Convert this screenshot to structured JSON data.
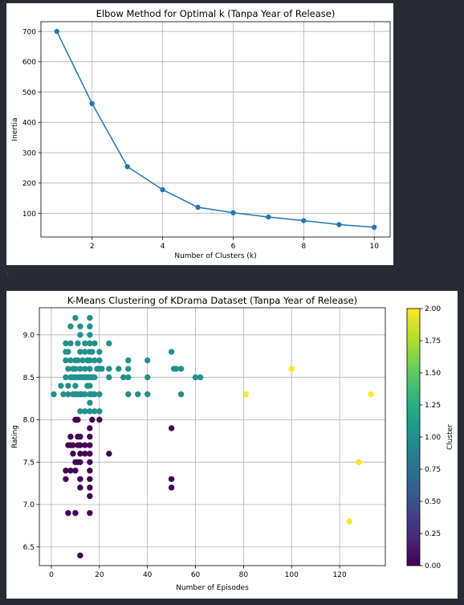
{
  "chart_data": [
    {
      "type": "line",
      "title": "Elbow Method for Optimal k (Tanpa Year of Release)",
      "xlabel": "Number of Clusters (k)",
      "ylabel": "Inertia",
      "x": [
        1,
        2,
        3,
        4,
        5,
        6,
        7,
        8,
        9,
        10
      ],
      "y": [
        700,
        462,
        254,
        178,
        120,
        102,
        88,
        76,
        63,
        54
      ],
      "xticks": [
        "2",
        "4",
        "6",
        "8",
        "10"
      ],
      "yticks": [
        "100",
        "200",
        "300",
        "400",
        "500",
        "600",
        "700"
      ],
      "xlim": [
        0.55,
        10.45
      ],
      "ylim": [
        22,
        732
      ],
      "grid": true,
      "color": "#1f77b4",
      "marker": "circle"
    },
    {
      "type": "scatter",
      "title": "K-Means Clustering of KDrama Dataset (Tanpa Year of Release)",
      "xlabel": "Number of Episodes",
      "ylabel": "Rating",
      "xticks": [
        "0",
        "20",
        "40",
        "60",
        "80",
        "100",
        "120"
      ],
      "yticks": [
        "6.5",
        "7.0",
        "7.5",
        "8.0",
        "8.5",
        "9.0"
      ],
      "xlim": [
        -5,
        139
      ],
      "ylim": [
        6.28,
        9.32
      ],
      "grid": true,
      "colormap": "viridis",
      "colorbar": {
        "label": "Cluster",
        "min": 0,
        "max": 2,
        "ticks": [
          "0.00",
          "0.25",
          "0.50",
          "0.75",
          "1.00",
          "1.25",
          "1.50",
          "1.75",
          "2.00"
        ]
      },
      "series": [
        {
          "cluster": 0,
          "color": "#440154",
          "points": [
            [
              6,
              7.4
            ],
            [
              6,
              7.3
            ],
            [
              7,
              6.9
            ],
            [
              7,
              7.7
            ],
            [
              8,
              7.4
            ],
            [
              8,
              7.7
            ],
            [
              8,
              7.8
            ],
            [
              9,
              7.6
            ],
            [
              9,
              7.7
            ],
            [
              10,
              7.5
            ],
            [
              10,
              7.4
            ],
            [
              10,
              6.9
            ],
            [
              10,
              8.0
            ],
            [
              11,
              7.8
            ],
            [
              11,
              7.7
            ],
            [
              11,
              7.5
            ],
            [
              11,
              8.0
            ],
            [
              12,
              7.6
            ],
            [
              12,
              7.3
            ],
            [
              12,
              7.2
            ],
            [
              12,
              7.5
            ],
            [
              12,
              7.8
            ],
            [
              12,
              7.7
            ],
            [
              12,
              6.4
            ],
            [
              14,
              7.7
            ],
            [
              14,
              7.6
            ],
            [
              16,
              7.7
            ],
            [
              16,
              7.6
            ],
            [
              16,
              7.5
            ],
            [
              16,
              7.4
            ],
            [
              16,
              7.3
            ],
            [
              16,
              7.2
            ],
            [
              16,
              7.1
            ],
            [
              16,
              6.9
            ],
            [
              16,
              7.8
            ],
            [
              16,
              7.9
            ],
            [
              17,
              8.0
            ],
            [
              20,
              8.0
            ],
            [
              24,
              7.6
            ],
            [
              50,
              7.9
            ],
            [
              50,
              7.3
            ],
            [
              50,
              7.2
            ]
          ]
        },
        {
          "cluster": 1,
          "color": "#21918c",
          "points": [
            [
              1,
              8.3
            ],
            [
              4,
              8.4
            ],
            [
              5,
              8.3
            ],
            [
              6,
              8.5
            ],
            [
              6,
              8.7
            ],
            [
              6,
              8.8
            ],
            [
              6,
              8.9
            ],
            [
              7,
              8.3
            ],
            [
              7,
              8.4
            ],
            [
              7,
              8.6
            ],
            [
              7,
              8.8
            ],
            [
              8,
              8.5
            ],
            [
              8,
              8.7
            ],
            [
              8,
              8.9
            ],
            [
              8,
              9.1
            ],
            [
              9,
              8.3
            ],
            [
              9,
              8.5
            ],
            [
              9,
              8.6
            ],
            [
              10,
              8.3
            ],
            [
              10,
              8.4
            ],
            [
              10,
              8.5
            ],
            [
              10,
              8.6
            ],
            [
              10,
              8.7
            ],
            [
              10,
              9.2
            ],
            [
              11,
              8.3
            ],
            [
              11,
              8.5
            ],
            [
              11,
              8.7
            ],
            [
              11,
              8.9
            ],
            [
              12,
              8.1
            ],
            [
              12,
              8.3
            ],
            [
              12,
              8.5
            ],
            [
              12,
              8.6
            ],
            [
              12,
              8.8
            ],
            [
              12,
              9.0
            ],
            [
              12,
              9.1
            ],
            [
              13,
              8.3
            ],
            [
              13,
              8.5
            ],
            [
              13,
              8.7
            ],
            [
              14,
              8.1
            ],
            [
              14,
              8.3
            ],
            [
              14,
              8.5
            ],
            [
              14,
              8.6
            ],
            [
              14,
              8.8
            ],
            [
              14,
              8.9
            ],
            [
              15,
              8.4
            ],
            [
              15,
              8.5
            ],
            [
              15,
              8.7
            ],
            [
              16,
              8.1
            ],
            [
              16,
              8.2
            ],
            [
              16,
              8.3
            ],
            [
              16,
              8.4
            ],
            [
              16,
              8.5
            ],
            [
              16,
              8.6
            ],
            [
              16,
              8.7
            ],
            [
              16,
              8.8
            ],
            [
              16,
              8.9
            ],
            [
              16,
              9.0
            ],
            [
              16,
              9.1
            ],
            [
              16,
              9.2
            ],
            [
              17,
              8.3
            ],
            [
              17,
              8.5
            ],
            [
              17,
              8.8
            ],
            [
              18,
              8.1
            ],
            [
              18,
              8.3
            ],
            [
              18,
              8.5
            ],
            [
              18,
              8.7
            ],
            [
              18,
              8.9
            ],
            [
              19,
              8.6
            ],
            [
              20,
              8.1
            ],
            [
              20,
              8.3
            ],
            [
              20,
              8.6
            ],
            [
              20,
              8.7
            ],
            [
              20,
              8.8
            ],
            [
              21,
              8.6
            ],
            [
              24,
              8.5
            ],
            [
              24,
              8.6
            ],
            [
              24,
              8.9
            ],
            [
              28,
              8.6
            ],
            [
              30,
              8.5
            ],
            [
              32,
              8.3
            ],
            [
              32,
              8.5
            ],
            [
              32,
              8.6
            ],
            [
              32,
              8.7
            ],
            [
              36,
              8.3
            ],
            [
              40,
              8.3
            ],
            [
              40,
              8.5
            ],
            [
              40,
              8.7
            ],
            [
              50,
              8.8
            ],
            [
              51,
              8.6
            ],
            [
              52,
              8.6
            ],
            [
              54,
              8.3
            ],
            [
              54,
              8.6
            ],
            [
              60,
              8.5
            ],
            [
              62,
              8.5
            ]
          ]
        },
        {
          "cluster": 2,
          "color": "#fde725",
          "points": [
            [
              81,
              8.3
            ],
            [
              100,
              8.6
            ],
            [
              124,
              6.8
            ],
            [
              128,
              7.5
            ],
            [
              133,
              8.3
            ]
          ]
        }
      ]
    }
  ],
  "ui": {
    "fold_marker": "‹"
  }
}
